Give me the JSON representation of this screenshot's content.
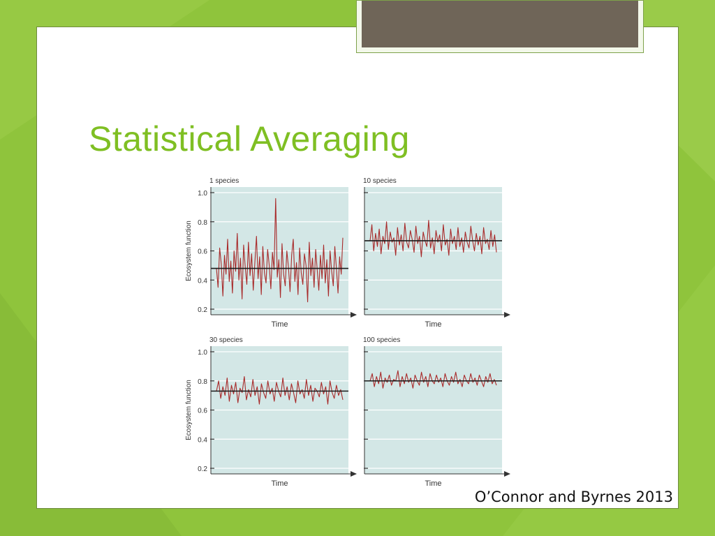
{
  "slide": {
    "title": "Statistical Averaging",
    "citation": "O’Connor and Byrnes 2013"
  },
  "theme": {
    "background": "#8fc43c",
    "title_color": "#7fbf23",
    "header_bar": "#6f6558",
    "plot_bg": "#d3e7e6",
    "series_color": "#a82a2a",
    "mean_line": "#1a1a1a"
  },
  "chart_data": [
    {
      "type": "line",
      "title": "1 species",
      "xlabel": "Time",
      "ylabel": "Ecosystem function",
      "ylim": [
        0.2,
        1.0
      ],
      "yticks": [
        "0.2",
        "0.4",
        "0.6",
        "0.8",
        "1.0"
      ],
      "mean": 0.48,
      "series": [
        {
          "values": [
            0.48,
            0.35,
            0.62,
            0.51,
            0.29,
            0.57,
            0.44,
            0.68,
            0.39,
            0.53,
            0.31,
            0.6,
            0.46,
            0.72,
            0.4,
            0.55,
            0.27,
            0.64,
            0.49,
            0.37,
            0.66,
            0.43,
            0.58,
            0.33,
            0.52,
            0.7,
            0.41,
            0.56,
            0.3,
            0.63,
            0.45,
            0.38,
            0.61,
            0.5,
            0.34,
            0.59,
            0.47,
            0.96,
            0.42,
            0.54,
            0.28,
            0.65,
            0.44,
            0.36,
            0.6,
            0.49,
            0.32,
            0.57,
            0.68,
            0.39,
            0.52,
            0.3,
            0.62,
            0.45,
            0.37,
            0.58,
            0.5,
            0.25,
            0.66,
            0.43,
            0.55,
            0.35,
            0.61,
            0.47,
            0.33,
            0.57,
            0.41,
            0.64,
            0.38,
            0.54,
            0.29,
            0.6,
            0.46,
            0.36,
            0.63,
            0.48,
            0.31,
            0.56,
            0.44,
            0.69
          ]
        }
      ]
    },
    {
      "type": "line",
      "title": "10 species",
      "xlabel": "Time",
      "ylabel": "Ecosystem function",
      "ylim": [
        0.2,
        1.0
      ],
      "yticks": [
        "0.2",
        "0.4",
        "0.6",
        "0.8",
        "1.0"
      ],
      "mean": 0.67,
      "series": [
        {
          "values": [
            0.67,
            0.78,
            0.6,
            0.72,
            0.63,
            0.75,
            0.58,
            0.7,
            0.65,
            0.8,
            0.61,
            0.73,
            0.66,
            0.69,
            0.57,
            0.76,
            0.64,
            0.71,
            0.6,
            0.79,
            0.66,
            0.62,
            0.74,
            0.68,
            0.59,
            0.77,
            0.65,
            0.7,
            0.56,
            0.73,
            0.67,
            0.63,
            0.81,
            0.62,
            0.69,
            0.58,
            0.74,
            0.66,
            0.71,
            0.6,
            0.78,
            0.64,
            0.68,
            0.57,
            0.75,
            0.65,
            0.7,
            0.61,
            0.76,
            0.63,
            0.69,
            0.59,
            0.73,
            0.66,
            0.62,
            0.77,
            0.67,
            0.6,
            0.72,
            0.64,
            0.7,
            0.58,
            0.76,
            0.65,
            0.68,
            0.61,
            0.74,
            0.63,
            0.71,
            0.59
          ]
        }
      ]
    },
    {
      "type": "line",
      "title": "30 species",
      "xlabel": "Time",
      "ylabel": "Ecosystem function",
      "ylim": [
        0.2,
        1.0
      ],
      "yticks": [
        "0.2",
        "0.4",
        "0.6",
        "0.8",
        "1.0"
      ],
      "mean": 0.73,
      "series": [
        {
          "values": [
            0.73,
            0.8,
            0.68,
            0.76,
            0.7,
            0.82,
            0.66,
            0.77,
            0.71,
            0.79,
            0.65,
            0.75,
            0.72,
            0.83,
            0.67,
            0.74,
            0.69,
            0.81,
            0.7,
            0.76,
            0.64,
            0.78,
            0.72,
            0.68,
            0.8,
            0.71,
            0.75,
            0.66,
            0.79,
            0.73,
            0.69,
            0.82,
            0.7,
            0.76,
            0.67,
            0.78,
            0.72,
            0.65,
            0.8,
            0.71,
            0.74,
            0.68,
            0.81,
            0.7,
            0.77,
            0.66,
            0.75,
            0.73,
            0.69,
            0.79,
            0.71,
            0.76,
            0.64,
            0.8,
            0.72,
            0.68,
            0.77,
            0.7,
            0.74,
            0.67
          ]
        }
      ]
    },
    {
      "type": "line",
      "title": "100 species",
      "xlabel": "Time",
      "ylabel": "Ecosystem function",
      "ylim": [
        0.2,
        1.0
      ],
      "yticks": [
        "0.2",
        "0.4",
        "0.6",
        "0.8",
        "1.0"
      ],
      "mean": 0.8,
      "series": [
        {
          "values": [
            0.8,
            0.85,
            0.76,
            0.83,
            0.78,
            0.86,
            0.75,
            0.82,
            0.79,
            0.84,
            0.77,
            0.81,
            0.8,
            0.87,
            0.76,
            0.83,
            0.78,
            0.85,
            0.79,
            0.82,
            0.75,
            0.84,
            0.8,
            0.77,
            0.86,
            0.79,
            0.83,
            0.76,
            0.85,
            0.8,
            0.78,
            0.84,
            0.79,
            0.82,
            0.76,
            0.85,
            0.8,
            0.77,
            0.83,
            0.79,
            0.86,
            0.78,
            0.81,
            0.76,
            0.84,
            0.8,
            0.78,
            0.85,
            0.79,
            0.82,
            0.77,
            0.84,
            0.8,
            0.76,
            0.83,
            0.79,
            0.85,
            0.78,
            0.81,
            0.77
          ]
        }
      ]
    }
  ]
}
